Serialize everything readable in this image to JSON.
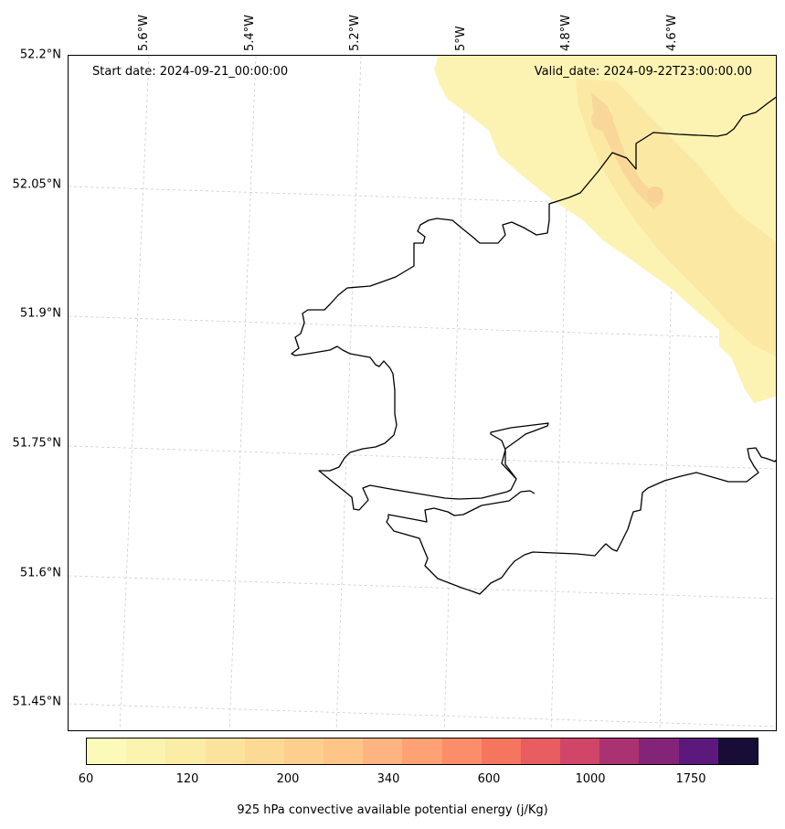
{
  "map": {
    "start_date": "Start date: 2024-09-21_00:00:00",
    "valid_date": "Valid_date: 2024-09-22T23:00:00.00",
    "lat_labels": [
      "52.2°N",
      "52.05°N",
      "51.9°N",
      "51.75°N",
      "51.6°N",
      "51.45°N"
    ],
    "lon_labels": [
      "5.6°W",
      "5.4°W",
      "5.2°W",
      "5°W",
      "4.8°W",
      "4.6°W"
    ],
    "coastline_color": "#000000",
    "gridline_color": "#cccccc",
    "cape_field_colors": {
      "low": "#fcf3b3",
      "mid": "#fbe9a3",
      "high": "#f9d79a"
    }
  },
  "colorbar": {
    "label": "925 hPa convective available potential energy (j/Kg)",
    "tick_labels": [
      "60",
      "120",
      "200",
      "340",
      "600",
      "1000",
      "1750"
    ],
    "colors": [
      "#fbfab9",
      "#fbf3b0",
      "#fbeca6",
      "#fce39d",
      "#fdd996",
      "#fdcf8e",
      "#fec488",
      "#feb480",
      "#fea276",
      "#fc8d6b",
      "#f6755e",
      "#e85d5f",
      "#d04568",
      "#aa3272",
      "#842478",
      "#5c187a",
      "#170d36"
    ]
  }
}
